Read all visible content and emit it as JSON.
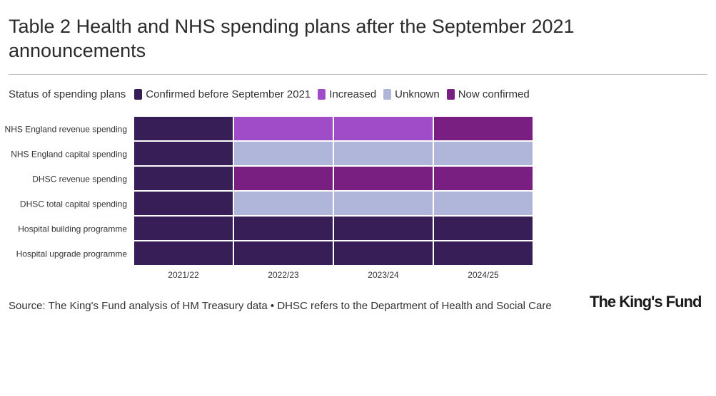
{
  "title": "Table 2 Health and NHS spending plans after the September 2021 announcements",
  "legend": {
    "title": "Status of spending plans",
    "items": [
      {
        "label": "Confirmed before September 2021",
        "color": "#371e56"
      },
      {
        "label": "Increased",
        "color": "#a04bc7"
      },
      {
        "label": "Unknown",
        "color": "#afb6da"
      },
      {
        "label": "Now confirmed",
        "color": "#7a1f82"
      }
    ]
  },
  "chart_data": {
    "type": "heatmap",
    "title": "Table 2 Health and NHS spending plans after the September 2021 announcements",
    "columns": [
      "2021/22",
      "2022/23",
      "2023/24",
      "2024/25"
    ],
    "rows": [
      "NHS England revenue spending",
      "NHS England capital spending",
      "DHSC revenue spending",
      "DHSC total capital spending",
      "Hospital building programme",
      "Hospital upgrade programme"
    ],
    "values": [
      [
        "Confirmed before September 2021",
        "Increased",
        "Increased",
        "Now confirmed"
      ],
      [
        "Confirmed before September 2021",
        "Unknown",
        "Unknown",
        "Unknown"
      ],
      [
        "Confirmed before September 2021",
        "Now confirmed",
        "Now confirmed",
        "Now confirmed"
      ],
      [
        "Confirmed before September 2021",
        "Unknown",
        "Unknown",
        "Unknown"
      ],
      [
        "Confirmed before September 2021",
        "Confirmed before September 2021",
        "Confirmed before September 2021",
        "Confirmed before September 2021"
      ],
      [
        "Confirmed before September 2021",
        "Confirmed before September 2021",
        "Confirmed before September 2021",
        "Confirmed before September 2021"
      ]
    ],
    "legend_placement": "top-left",
    "grid": false
  },
  "source": "Source: The King's Fund analysis of HM Treasury data • DHSC refers to the Department of Health and Social Care",
  "logo": "The King's Fund"
}
